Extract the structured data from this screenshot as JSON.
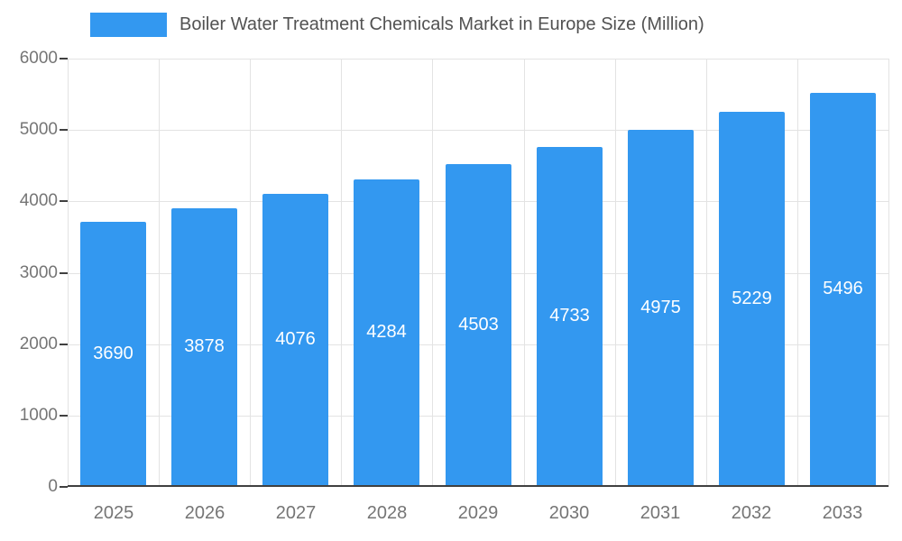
{
  "legend": {
    "title": "Boiler Water Treatment Chemicals Market in Europe Size (Million)"
  },
  "chart_data": {
    "type": "bar",
    "categories": [
      "2025",
      "2026",
      "2027",
      "2028",
      "2029",
      "2030",
      "2031",
      "2032",
      "2033"
    ],
    "values": [
      3690,
      3878,
      4076,
      4284,
      4503,
      4733,
      4975,
      5229,
      5496
    ],
    "title": "Boiler Water Treatment Chemicals Market in Europe Size (Million)",
    "xlabel": "",
    "ylabel": "",
    "ylim": [
      0,
      6000
    ],
    "yticks": [
      0,
      1000,
      2000,
      3000,
      4000,
      5000,
      6000
    ],
    "grid": true,
    "legend_position": "top-left",
    "bar_color": "#3398f0",
    "value_label_color": "#ffffff",
    "axis_label_color": "#757575",
    "gridline_color": "#e3e3e3",
    "baseline_color": "#404040"
  }
}
